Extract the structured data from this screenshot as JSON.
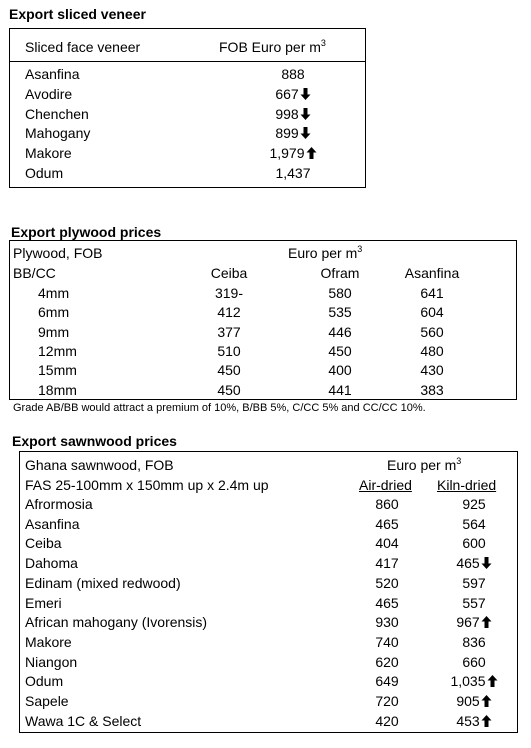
{
  "veneer": {
    "title": "Export sliced veneer",
    "col1": "Sliced face veneer",
    "col2": "FOB Euro per m",
    "col2_sup": "3",
    "rows": [
      {
        "name": "Asanfina",
        "value": "888",
        "trend": ""
      },
      {
        "name": "Avodire",
        "value": "667",
        "trend": "down"
      },
      {
        "name": "Chenchen",
        "value": "998",
        "trend": "down"
      },
      {
        "name": "Mahogany",
        "value": "899",
        "trend": "down"
      },
      {
        "name": "Makore",
        "value": "1,979",
        "trend": "up"
      },
      {
        "name": "Odum",
        "value": "1,437",
        "trend": ""
      }
    ]
  },
  "plywood": {
    "title": "Export plywood prices",
    "head1": "Plywood, FOB",
    "head2": "Euro per m",
    "head2_sup": "3",
    "grade": "BB/CC",
    "species": [
      "Ceiba",
      "Ofram",
      "Asanfina"
    ],
    "rows": [
      {
        "size": "4mm",
        "values": [
          "319-",
          "580",
          "641"
        ]
      },
      {
        "size": "6mm",
        "values": [
          "412",
          "535",
          "604"
        ]
      },
      {
        "size": "9mm",
        "values": [
          "377",
          "446",
          "560"
        ]
      },
      {
        "size": "12mm",
        "values": [
          "510",
          "450",
          "480"
        ]
      },
      {
        "size": "15mm",
        "values": [
          "450",
          "400",
          "430"
        ]
      },
      {
        "size": "18mm",
        "values": [
          "450",
          "441",
          "383"
        ]
      }
    ],
    "note": "Grade AB/BB would attract a premium of 10%, B/BB 5%, C/CC 5% and CC/CC 10%."
  },
  "sawnwood": {
    "title": "Export sawnwood prices",
    "head1": "Ghana sawnwood, FOB",
    "head2": "Euro per m",
    "head2_sup": "3",
    "spec": "FAS 25-100mm x 150mm up x 2.4m up",
    "col_air": "Air-dried",
    "col_kiln": "Kiln-dried",
    "rows": [
      {
        "name": "Afrormosia",
        "air": "860",
        "kiln": "925",
        "trend": ""
      },
      {
        "name": "Asanfina",
        "air": "465",
        "kiln": "564",
        "trend": ""
      },
      {
        "name": "Ceiba",
        "air": "404",
        "kiln": "600",
        "trend": ""
      },
      {
        "name": "Dahoma",
        "air": "417",
        "kiln": "465",
        "trend": "down"
      },
      {
        "name": "Edinam (mixed redwood)",
        "air": "520",
        "kiln": "597",
        "trend": ""
      },
      {
        "name": "Emeri",
        "air": "465",
        "kiln": "557",
        "trend": ""
      },
      {
        "name": "African mahogany (Ivorensis)",
        "air": "930",
        "kiln": "967",
        "trend": "up"
      },
      {
        "name": "Makore",
        "air": "740",
        "kiln": "836",
        "trend": ""
      },
      {
        "name": "Niangon",
        "air": "620",
        "kiln": "660",
        "trend": ""
      },
      {
        "name": "Odum",
        "air": "649",
        "kiln": "1,035",
        "trend": "up"
      },
      {
        "name": "Sapele",
        "air": "720",
        "kiln": "905",
        "trend": "up"
      },
      {
        "name": "Wawa 1C & Select",
        "air": "420",
        "kiln": "453",
        "trend": "up"
      }
    ]
  }
}
